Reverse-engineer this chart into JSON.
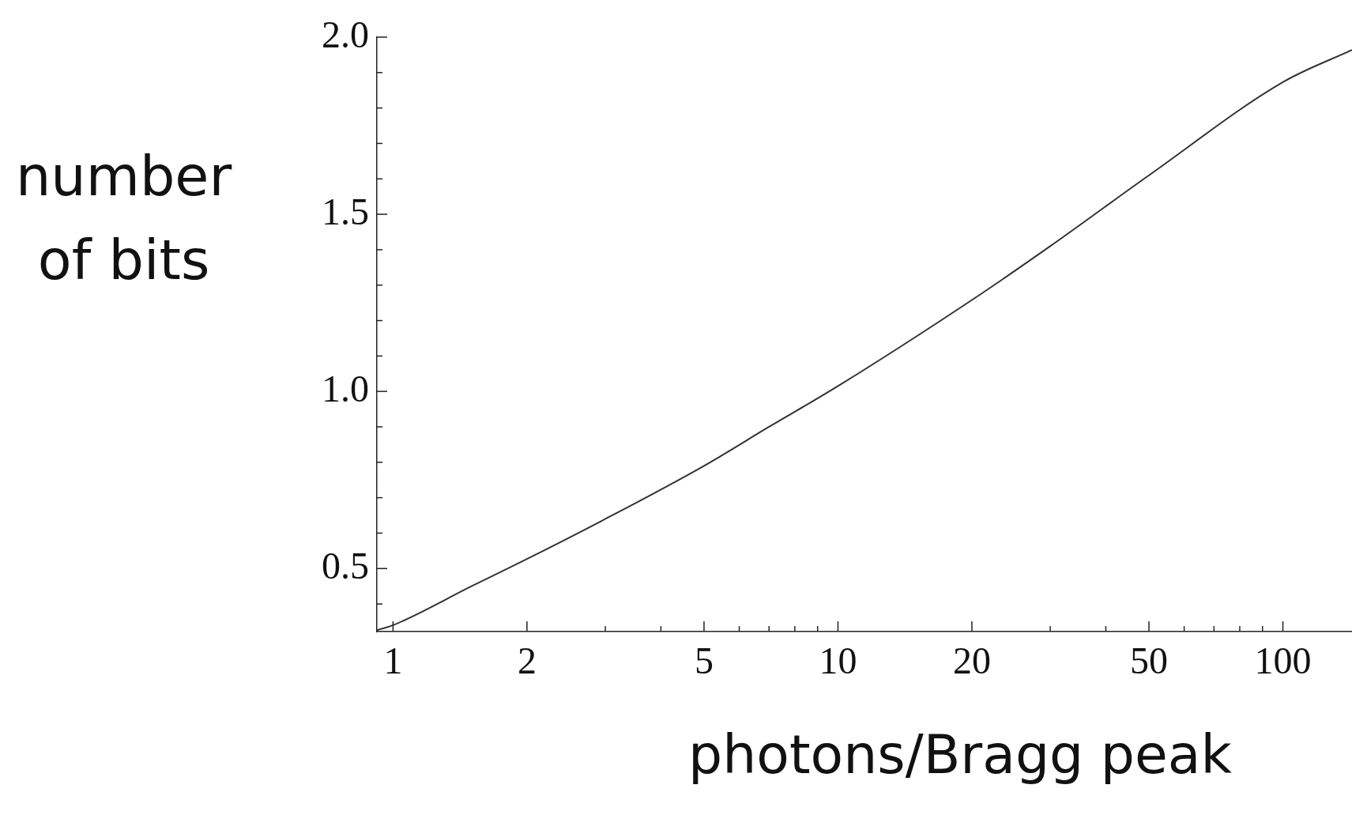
{
  "chart_data": {
    "type": "line",
    "xlabel": "photons/Bragg peak",
    "ylabel": "number of bits",
    "log": "x",
    "grid": false,
    "legend": false,
    "marker": "none",
    "line_style": "solid",
    "x": [
      0.92,
      1,
      1.5,
      2,
      3,
      5,
      7,
      10,
      20,
      30,
      50,
      100,
      143
    ],
    "series": [
      {
        "color": "#333333",
        "values": [
          0.326,
          0.34,
          0.45,
          0.527,
          0.64,
          0.79,
          0.9,
          1.015,
          1.258,
          1.41,
          1.61,
          1.873,
          1.964
        ]
      }
    ],
    "xlim": [
      0.92,
      143
    ],
    "ylim": [
      0.322,
      2.0
    ],
    "xticks": [
      1,
      2,
      {
        "value": 3,
        "label": null
      },
      {
        "value": 4,
        "label": null
      },
      5,
      {
        "value": 6,
        "label": null
      },
      {
        "value": 7,
        "label": null
      },
      {
        "value": 8,
        "label": null
      },
      {
        "value": 9,
        "label": null
      },
      10,
      20,
      {
        "value": 30,
        "label": null
      },
      {
        "value": 40,
        "label": null
      },
      50,
      {
        "value": 60,
        "label": null
      },
      {
        "value": 70,
        "label": null
      },
      {
        "value": 80,
        "label": null
      },
      {
        "value": 90,
        "label": null
      },
      100
    ],
    "yticks": [
      {
        "value": 0.4,
        "label": null
      },
      0.5,
      {
        "value": 0.6,
        "label": null
      },
      {
        "value": 0.7,
        "label": null
      },
      {
        "value": 0.8,
        "label": null
      },
      {
        "value": 0.9,
        "label": null
      },
      {
        "value": 1.0,
        "label": "1.0"
      },
      {
        "value": 1.1,
        "label": null
      },
      {
        "value": 1.2,
        "label": null
      },
      {
        "value": 1.3,
        "label": null
      },
      {
        "value": 1.4,
        "label": null
      },
      1.5,
      {
        "value": 1.6,
        "label": null
      },
      {
        "value": 1.7,
        "label": null
      },
      {
        "value": 1.8,
        "label": null
      },
      {
        "value": 1.9,
        "label": null
      },
      {
        "value": 2.0,
        "label": "2.0"
      }
    ]
  }
}
